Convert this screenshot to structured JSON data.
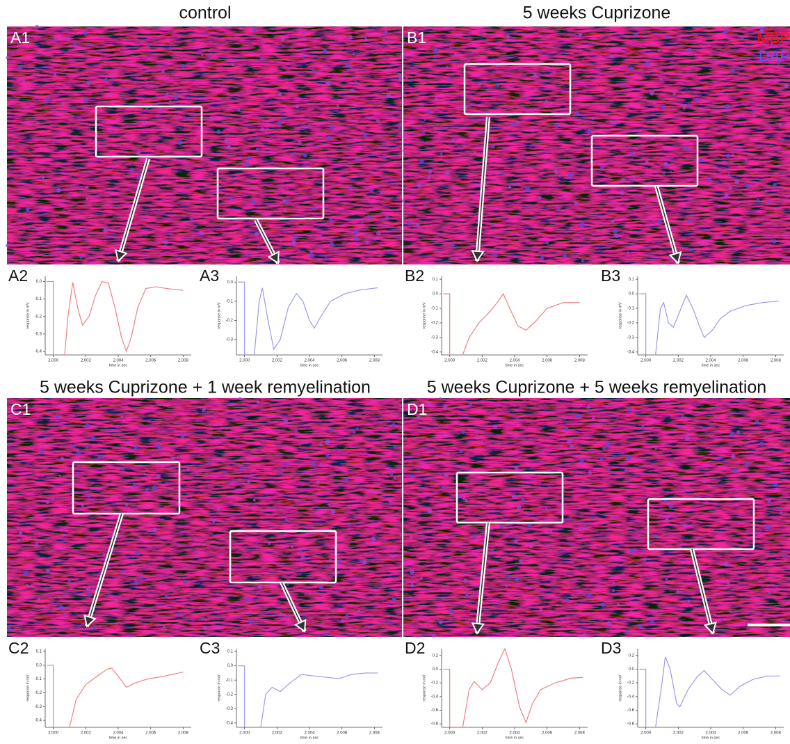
{
  "figure": {
    "panels": [
      {
        "title": "control",
        "image_label": "A1"
      },
      {
        "title": "5 weeks Cuprizone",
        "image_label": "B1"
      },
      {
        "title": "5 weeks Cuprizone + 1 week remyelination",
        "image_label": "C1"
      },
      {
        "title": "5 weeks Cuprizone + 5 weeks remyelination",
        "image_label": "D1"
      }
    ],
    "legend": {
      "mbp": "MBP",
      "dapi": "DAP"
    }
  },
  "chart_data": [
    {
      "type": "line",
      "label": "A2",
      "color": "#f08080",
      "x_label": "time in sec",
      "y_label": "response in mV",
      "x": [
        1.9996,
        2.0,
        2.0,
        null,
        2.0007,
        2.0009,
        2.0012,
        2.0015,
        2.0018,
        2.0022,
        2.0026,
        2.003,
        2.0034,
        2.0038,
        2.0042,
        2.0045,
        2.0048,
        2.0052,
        2.0057,
        2.0063,
        2.007,
        2.008
      ],
      "values": [
        0,
        0,
        -0.42,
        null,
        -0.42,
        -0.2,
        -0.005,
        -0.15,
        -0.25,
        -0.2,
        -0.08,
        0.0,
        -0.01,
        -0.15,
        -0.32,
        -0.4,
        -0.32,
        -0.15,
        -0.04,
        -0.03,
        -0.04,
        -0.05
      ],
      "xlim": [
        1.9995,
        2.0085
      ],
      "ylim": [
        -0.42,
        0.03
      ],
      "xticks": [
        {
          "value": 2.0,
          "label": "2.000"
        },
        2.002,
        2.004,
        2.006,
        2.008
      ],
      "yticks": [
        {
          "value": 0,
          "label": "0.0"
        },
        -0.1,
        -0.2,
        -0.3,
        -0.4
      ]
    },
    {
      "type": "line",
      "label": "A3",
      "color": "#9999ee",
      "x_label": "time in sec",
      "y_label": "response in mV",
      "x": [
        1.9996,
        2.0,
        2.0,
        null,
        2.0006,
        2.0009,
        2.0011,
        2.0014,
        2.0018,
        2.0022,
        2.0027,
        2.0032,
        2.0036,
        2.004,
        2.0043,
        2.0047,
        2.0053,
        2.0062,
        2.0072,
        2.0082
      ],
      "values": [
        0,
        0,
        -0.38,
        null,
        -0.38,
        -0.1,
        -0.03,
        -0.18,
        -0.35,
        -0.3,
        -0.13,
        -0.06,
        -0.1,
        -0.2,
        -0.24,
        -0.18,
        -0.1,
        -0.06,
        -0.04,
        -0.03
      ],
      "xlim": [
        1.9995,
        2.0085
      ],
      "ylim": [
        -0.38,
        0.03
      ],
      "xticks": [
        {
          "value": 2.0,
          "label": "2.000"
        },
        2.002,
        2.004,
        2.006,
        2.008
      ],
      "yticks": [
        {
          "value": 0,
          "label": "0.0"
        },
        -0.1,
        -0.2,
        -0.3
      ]
    },
    {
      "type": "line",
      "label": "B2",
      "color": "#f08080",
      "x_label": "time in sec",
      "y_label": "response in mV",
      "x": [
        1.9996,
        2.0,
        2.0,
        null,
        2.0008,
        2.0012,
        2.0018,
        2.0025,
        2.003,
        2.0033,
        2.0037,
        2.0042,
        2.0047,
        2.0052,
        2.006,
        2.007,
        2.008
      ],
      "values": [
        0,
        0,
        -0.42,
        null,
        -0.42,
        -0.3,
        -0.2,
        -0.12,
        -0.05,
        0.0,
        -0.1,
        -0.22,
        -0.25,
        -0.2,
        -0.1,
        -0.06,
        -0.06
      ],
      "xlim": [
        1.9995,
        2.0085
      ],
      "ylim": [
        -0.42,
        0.12
      ],
      "xticks": [
        {
          "value": 2.0,
          "label": "2.000"
        },
        2.002,
        2.004,
        2.006,
        2.008
      ],
      "yticks": [
        0.1,
        {
          "value": 0,
          "label": "0.0"
        },
        -0.1,
        -0.2,
        -0.3,
        -0.4
      ]
    },
    {
      "type": "line",
      "label": "B3",
      "color": "#9999ee",
      "x_label": "time in sec",
      "y_label": "response in mV",
      "x": [
        1.9996,
        2.0,
        2.0,
        null,
        2.0006,
        2.0009,
        2.0011,
        2.0014,
        2.0017,
        2.0021,
        2.0025,
        2.0029,
        2.0033,
        2.0036,
        2.0041,
        2.0046,
        2.0052,
        2.0062,
        2.0072,
        2.0082
      ],
      "values": [
        0,
        0,
        -0.42,
        null,
        -0.42,
        -0.1,
        -0.06,
        -0.2,
        -0.23,
        -0.12,
        -0.01,
        -0.1,
        -0.22,
        -0.3,
        -0.25,
        -0.17,
        -0.12,
        -0.08,
        -0.06,
        -0.05
      ],
      "xlim": [
        1.9995,
        2.0085
      ],
      "ylim": [
        -0.42,
        0.12
      ],
      "xticks": [
        {
          "value": 2.0,
          "label": "2.000"
        },
        2.002,
        2.004,
        2.006,
        2.008
      ],
      "yticks": [
        0.1,
        {
          "value": 0,
          "label": "0.0"
        },
        -0.1,
        -0.2,
        -0.3,
        -0.4
      ]
    },
    {
      "type": "line",
      "label": "C2",
      "color": "#f08080",
      "x_label": "time in sec",
      "y_label": "response in mV",
      "x": [
        1.9996,
        2.0,
        2.0,
        null,
        2.001,
        2.0014,
        2.002,
        2.0027,
        2.0033,
        2.0036,
        2.004,
        2.0045,
        2.005,
        2.0058,
        2.0068,
        2.008
      ],
      "values": [
        0,
        0,
        -0.45,
        null,
        -0.45,
        -0.25,
        -0.14,
        -0.08,
        -0.03,
        -0.02,
        -0.08,
        -0.16,
        -0.13,
        -0.1,
        -0.08,
        -0.05
      ],
      "xlim": [
        1.9995,
        2.0085
      ],
      "ylim": [
        -0.45,
        0.12
      ],
      "xticks": [
        {
          "value": 2.0,
          "label": "2.000"
        },
        2.002,
        2.004,
        2.006,
        2.008
      ],
      "yticks": [
        0.1,
        {
          "value": 0,
          "label": "0.0"
        },
        -0.1,
        -0.2,
        -0.3,
        -0.4
      ]
    },
    {
      "type": "line",
      "label": "C3",
      "color": "#9999ee",
      "x_label": "time in sec",
      "y_label": "response in mV",
      "x": [
        1.9996,
        2.0,
        2.0,
        null,
        2.001,
        2.0013,
        2.0017,
        2.0022,
        2.0028,
        2.0035,
        2.0042,
        2.005,
        2.0058,
        2.0066,
        2.0075,
        2.0082
      ],
      "values": [
        0,
        0,
        -0.43,
        null,
        -0.43,
        -0.2,
        -0.15,
        -0.18,
        -0.12,
        -0.06,
        -0.07,
        -0.08,
        -0.09,
        -0.06,
        -0.05,
        -0.05
      ],
      "xlim": [
        1.9995,
        2.0085
      ],
      "ylim": [
        -0.43,
        0.12
      ],
      "xticks": [
        {
          "value": 2.0,
          "label": "2.000"
        },
        2.002,
        2.004,
        2.006,
        2.008
      ],
      "yticks": [
        0.1,
        {
          "value": 0,
          "label": "0.0"
        },
        -0.1,
        -0.2,
        -0.3,
        -0.4
      ]
    },
    {
      "type": "line",
      "label": "D2",
      "color": "#f08080",
      "x_label": "time in sec",
      "y_label": "response in mV",
      "x": [
        1.9996,
        2.0,
        2.0,
        null,
        2.0008,
        2.0012,
        2.0015,
        2.002,
        2.0025,
        2.003,
        2.0034,
        2.0038,
        2.0043,
        2.0047,
        2.0051,
        2.0056,
        2.0065,
        2.0075,
        2.0082
      ],
      "values": [
        0,
        0,
        -0.85,
        null,
        -0.85,
        -0.3,
        -0.18,
        -0.3,
        -0.2,
        0.1,
        0.3,
        0.0,
        -0.55,
        -0.78,
        -0.5,
        -0.3,
        -0.2,
        -0.13,
        -0.12
      ],
      "xlim": [
        1.9995,
        2.0085
      ],
      "ylim": [
        -0.85,
        0.3
      ],
      "xticks": [
        {
          "value": 2.0,
          "label": "2.000"
        },
        2.002,
        2.004,
        2.006,
        2.008
      ],
      "yticks": [
        0.2,
        {
          "value": 0,
          "label": "0.0"
        },
        -0.2,
        -0.4,
        -0.6,
        -0.8
      ]
    },
    {
      "type": "line",
      "label": "D3",
      "color": "#9999ee",
      "x_label": "time in sec",
      "y_label": "response in mV",
      "x": [
        1.9996,
        2.0,
        2.0,
        null,
        2.0006,
        2.001,
        2.0012,
        2.0015,
        2.0019,
        2.0021,
        2.0026,
        2.0032,
        2.0036,
        2.0041,
        2.0047,
        2.0052,
        2.0058,
        2.0066,
        2.0075,
        2.0083
      ],
      "values": [
        0,
        0,
        -0.85,
        null,
        -0.85,
        -0.2,
        0.18,
        0.0,
        -0.5,
        -0.55,
        -0.3,
        -0.1,
        -0.02,
        -0.15,
        -0.3,
        -0.38,
        -0.25,
        -0.15,
        -0.1,
        -0.1
      ],
      "xlim": [
        1.9995,
        2.0085
      ],
      "ylim": [
        -0.85,
        0.3
      ],
      "xticks": [
        {
          "value": 2.0,
          "label": "2.000"
        },
        2.002,
        2.004,
        2.006,
        2.008
      ],
      "yticks": [
        0.2,
        {
          "value": 0,
          "label": "0.0"
        },
        -0.2,
        -0.4,
        -0.6,
        -0.8
      ]
    }
  ]
}
